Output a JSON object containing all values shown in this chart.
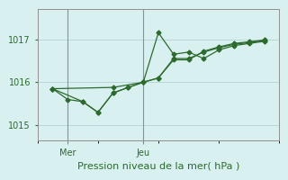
{
  "xlabel": "Pression niveau de la mer( hPa )",
  "background_color": "#d8f0f0",
  "grid_color": "#b8d8d8",
  "line_color": "#2d6a2d",
  "ylim": [
    1014.65,
    1017.7
  ],
  "yticks": [
    1015,
    1016,
    1017
  ],
  "xlim": [
    0,
    16
  ],
  "mer_x": 2,
  "jeu_x": 7,
  "x_tick_positions": [
    2,
    7
  ],
  "x_tick_labels": [
    "Mer",
    "Jeu"
  ],
  "series1_x": [
    1,
    2,
    3,
    4,
    5,
    6,
    7,
    8,
    9,
    10,
    11,
    12,
    13,
    14,
    15
  ],
  "series1_y": [
    1015.85,
    1015.6,
    1015.55,
    1015.3,
    1015.75,
    1015.88,
    1016.0,
    1017.15,
    1016.65,
    1016.7,
    1016.55,
    1016.75,
    1016.85,
    1016.9,
    1016.95
  ],
  "series2_x": [
    1,
    3,
    4,
    5,
    6,
    7,
    8,
    9,
    10,
    11,
    12,
    13,
    14,
    15
  ],
  "series2_y": [
    1015.85,
    1015.55,
    1015.3,
    1015.75,
    1015.88,
    1016.0,
    1016.1,
    1016.55,
    1016.55,
    1016.7,
    1016.8,
    1016.88,
    1016.92,
    1016.97
  ],
  "series3_x": [
    1,
    5,
    7,
    8,
    9,
    10,
    11,
    12,
    13,
    14,
    15
  ],
  "series3_y": [
    1015.85,
    1015.88,
    1016.0,
    1016.1,
    1016.52,
    1016.52,
    1016.72,
    1016.82,
    1016.9,
    1016.94,
    1016.98
  ]
}
